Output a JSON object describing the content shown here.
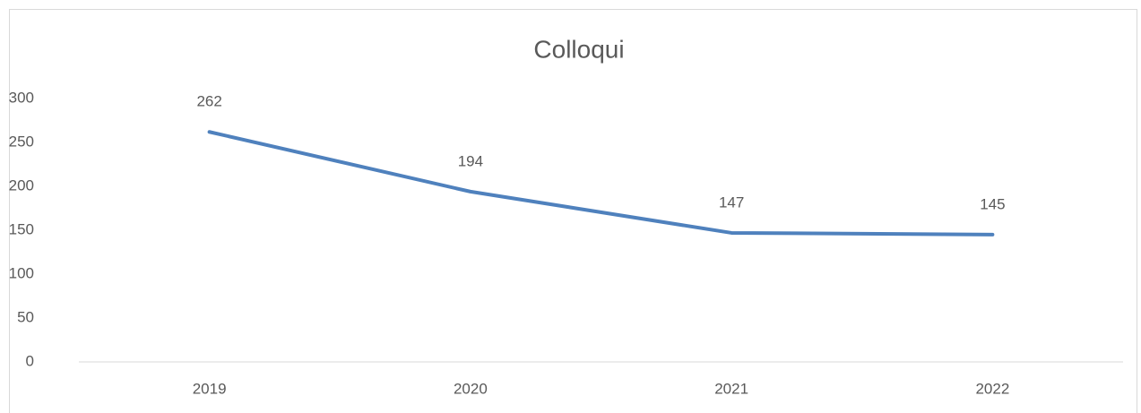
{
  "chart_data": {
    "type": "line",
    "title": "Colloqui",
    "categories": [
      "2019",
      "2020",
      "2021",
      "2022"
    ],
    "values": [
      262,
      194,
      147,
      145
    ],
    "color": "#4f81bd",
    "ylim": [
      0,
      300
    ],
    "yticks": [
      0,
      50,
      100,
      150,
      200,
      250,
      300
    ],
    "grid": false
  }
}
